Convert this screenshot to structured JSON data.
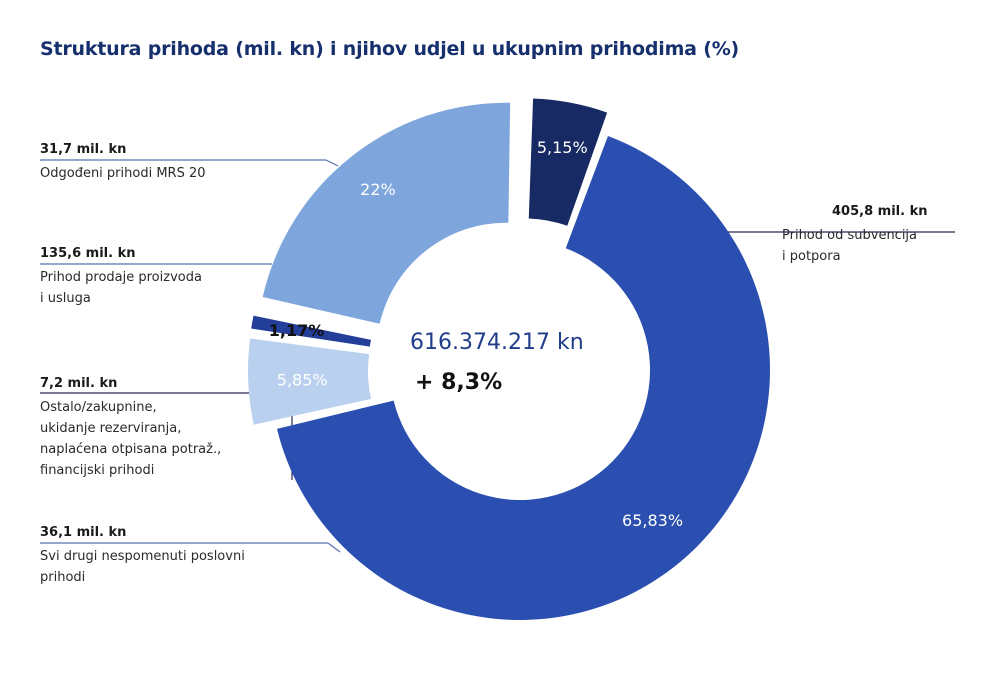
{
  "title": "Struktura prihoda (mil. kn) i njihov udjel u ukupnim prihodima (%)",
  "center": {
    "total": "616.374.217 kn",
    "change": "+ 8,3%"
  },
  "labels": {
    "deferred": {
      "value": "31,7 mil. kn",
      "desc": "Odgođeni prihodi MRS 20"
    },
    "sales": {
      "value": "135,6 mil. kn",
      "desc": "Prihod prodaje proizvoda\ni usluga"
    },
    "other": {
      "value": "7,2 mil. kn",
      "desc": "Ostalo/zakupnine,\nukidanje rezerviranja,\nnaplaćena otpisana potraž.,\nfinancijski prihodi"
    },
    "misc": {
      "value": "36,1 mil. kn",
      "desc": "Svi drugi nespomenuti poslovni\nprihodi"
    },
    "subsidies": {
      "value": "405,8 mil. kn",
      "desc": "Prihod od subvencija\ni potpora"
    }
  },
  "chart_data": {
    "type": "pie",
    "title": "Struktura prihoda (mil. kn) i njihov udjel u ukupnim prihodima (%)",
    "donut": true,
    "total_label": "616.374.217 kn",
    "change_label": "+ 8,3%",
    "slices": [
      {
        "name": "Prihod od subvencija i potpora",
        "value": 405.8,
        "percent": 65.83,
        "percent_label": "65,83%",
        "color": "#2a4fb0"
      },
      {
        "name": "Svi drugi nespomenuti poslovni prihodi",
        "value": 36.1,
        "percent": 5.85,
        "percent_label": "5,85%",
        "color": "#b9d0ef"
      },
      {
        "name": "Ostalo/zakupnine, ukidanje rezerviranja, naplaćena otpisana potraž., financijski prihodi",
        "value": 7.2,
        "percent": 1.17,
        "percent_label": "1,17%",
        "color": "#233f9a"
      },
      {
        "name": "Prihod prodaje proizvoda i usluga",
        "value": 135.6,
        "percent": 22,
        "percent_label": "22%",
        "color": "#7ea5dc"
      },
      {
        "name": "Odgođeni prihodi MRS 20",
        "value": 31.7,
        "percent": 5.15,
        "percent_label": "5,15%",
        "color": "#172a63"
      }
    ]
  }
}
